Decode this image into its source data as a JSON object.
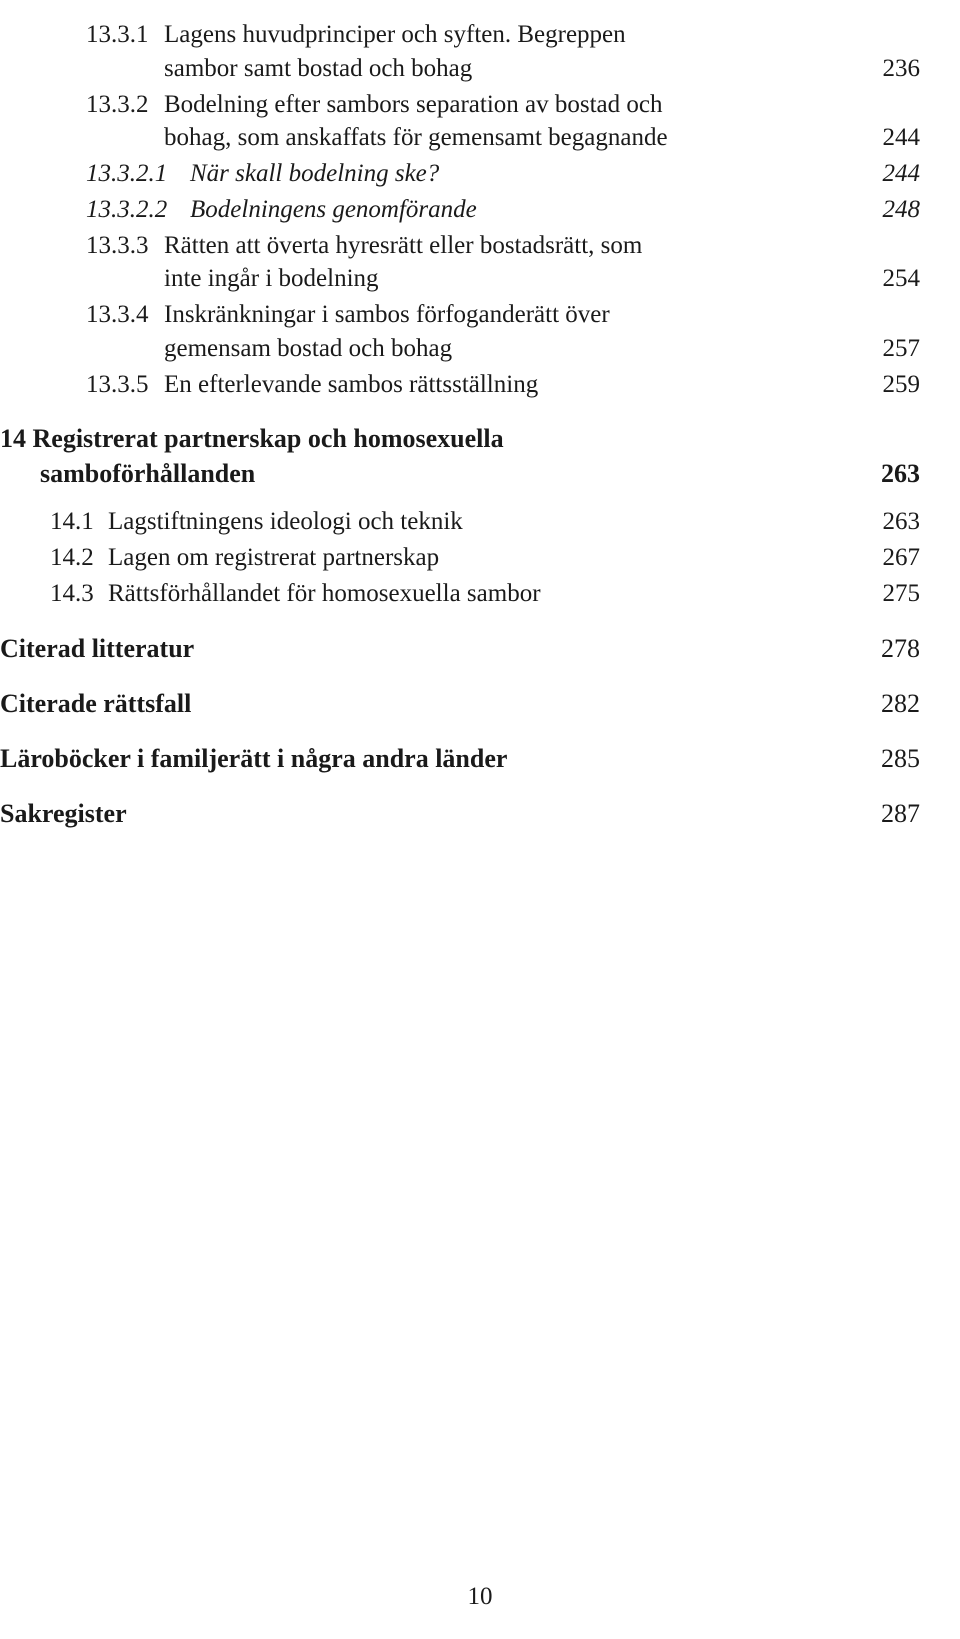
{
  "text_color": "#1a1a1a",
  "background_color": "#ffffff",
  "base_fontsize_pt": 19,
  "rows": [
    {
      "num": "13.3.1",
      "text": "Lagens huvudprinciper och syften. Begreppen",
      "cont": "sambor samt bostad och bohag",
      "page": "236",
      "cls": "indent-1 fs"
    },
    {
      "num": "13.3.2",
      "text": "Bodelning efter sambors separation av bostad och",
      "cont": "bohag, som anskaffats för gemensamt begagnande",
      "page": "244",
      "cls": "indent-1 fs"
    },
    {
      "num": "13.3.2.1",
      "text": "När skall bodelning ske?",
      "page": "244",
      "cls": "indent-2 fs"
    },
    {
      "num": "13.3.2.2",
      "text": "Bodelningens genomförande",
      "page": "248",
      "cls": "indent-2 fs"
    },
    {
      "num": "13.3.3",
      "text": "Rätten att överta hyresrätt eller bostadsrätt, som",
      "cont": "inte ingår i bodelning",
      "page": "254",
      "cls": "indent-1 fs"
    },
    {
      "num": "13.3.4",
      "text": "Inskränkningar i sambos förfoganderätt över",
      "cont": "gemensam bostad och bohag",
      "page": "257",
      "cls": "indent-1 fs"
    },
    {
      "num": "13.3.5",
      "text": "En efterlevande sambos rättsställning",
      "page": "259",
      "cls": "indent-1 fs"
    }
  ],
  "sec14_head": {
    "text1": "14 Registrerat partnerskap och homosexuella",
    "text2": "samboförhållanden",
    "page": "263"
  },
  "sec14": [
    {
      "num": "14.1",
      "text": "Lagstiftningens ideologi och teknik",
      "page": "263",
      "cls": "level-sub fs"
    },
    {
      "num": "14.2",
      "text": "Lagen om registrerat partnerskap",
      "page": "267",
      "cls": "level-sub fs"
    },
    {
      "num": "14.3",
      "text": "Rättsförhållandet för homosexuella sambor",
      "page": "275",
      "cls": "level-sub fs"
    }
  ],
  "tail": [
    {
      "text": "Citerad litteratur",
      "page": "278"
    },
    {
      "text": "Citerade rättsfall",
      "page": "282"
    },
    {
      "text": "Läroböcker i familjerätt i några andra länder",
      "page": "285"
    },
    {
      "text": "Sakregister",
      "page": "287"
    }
  ],
  "page_number": "10"
}
